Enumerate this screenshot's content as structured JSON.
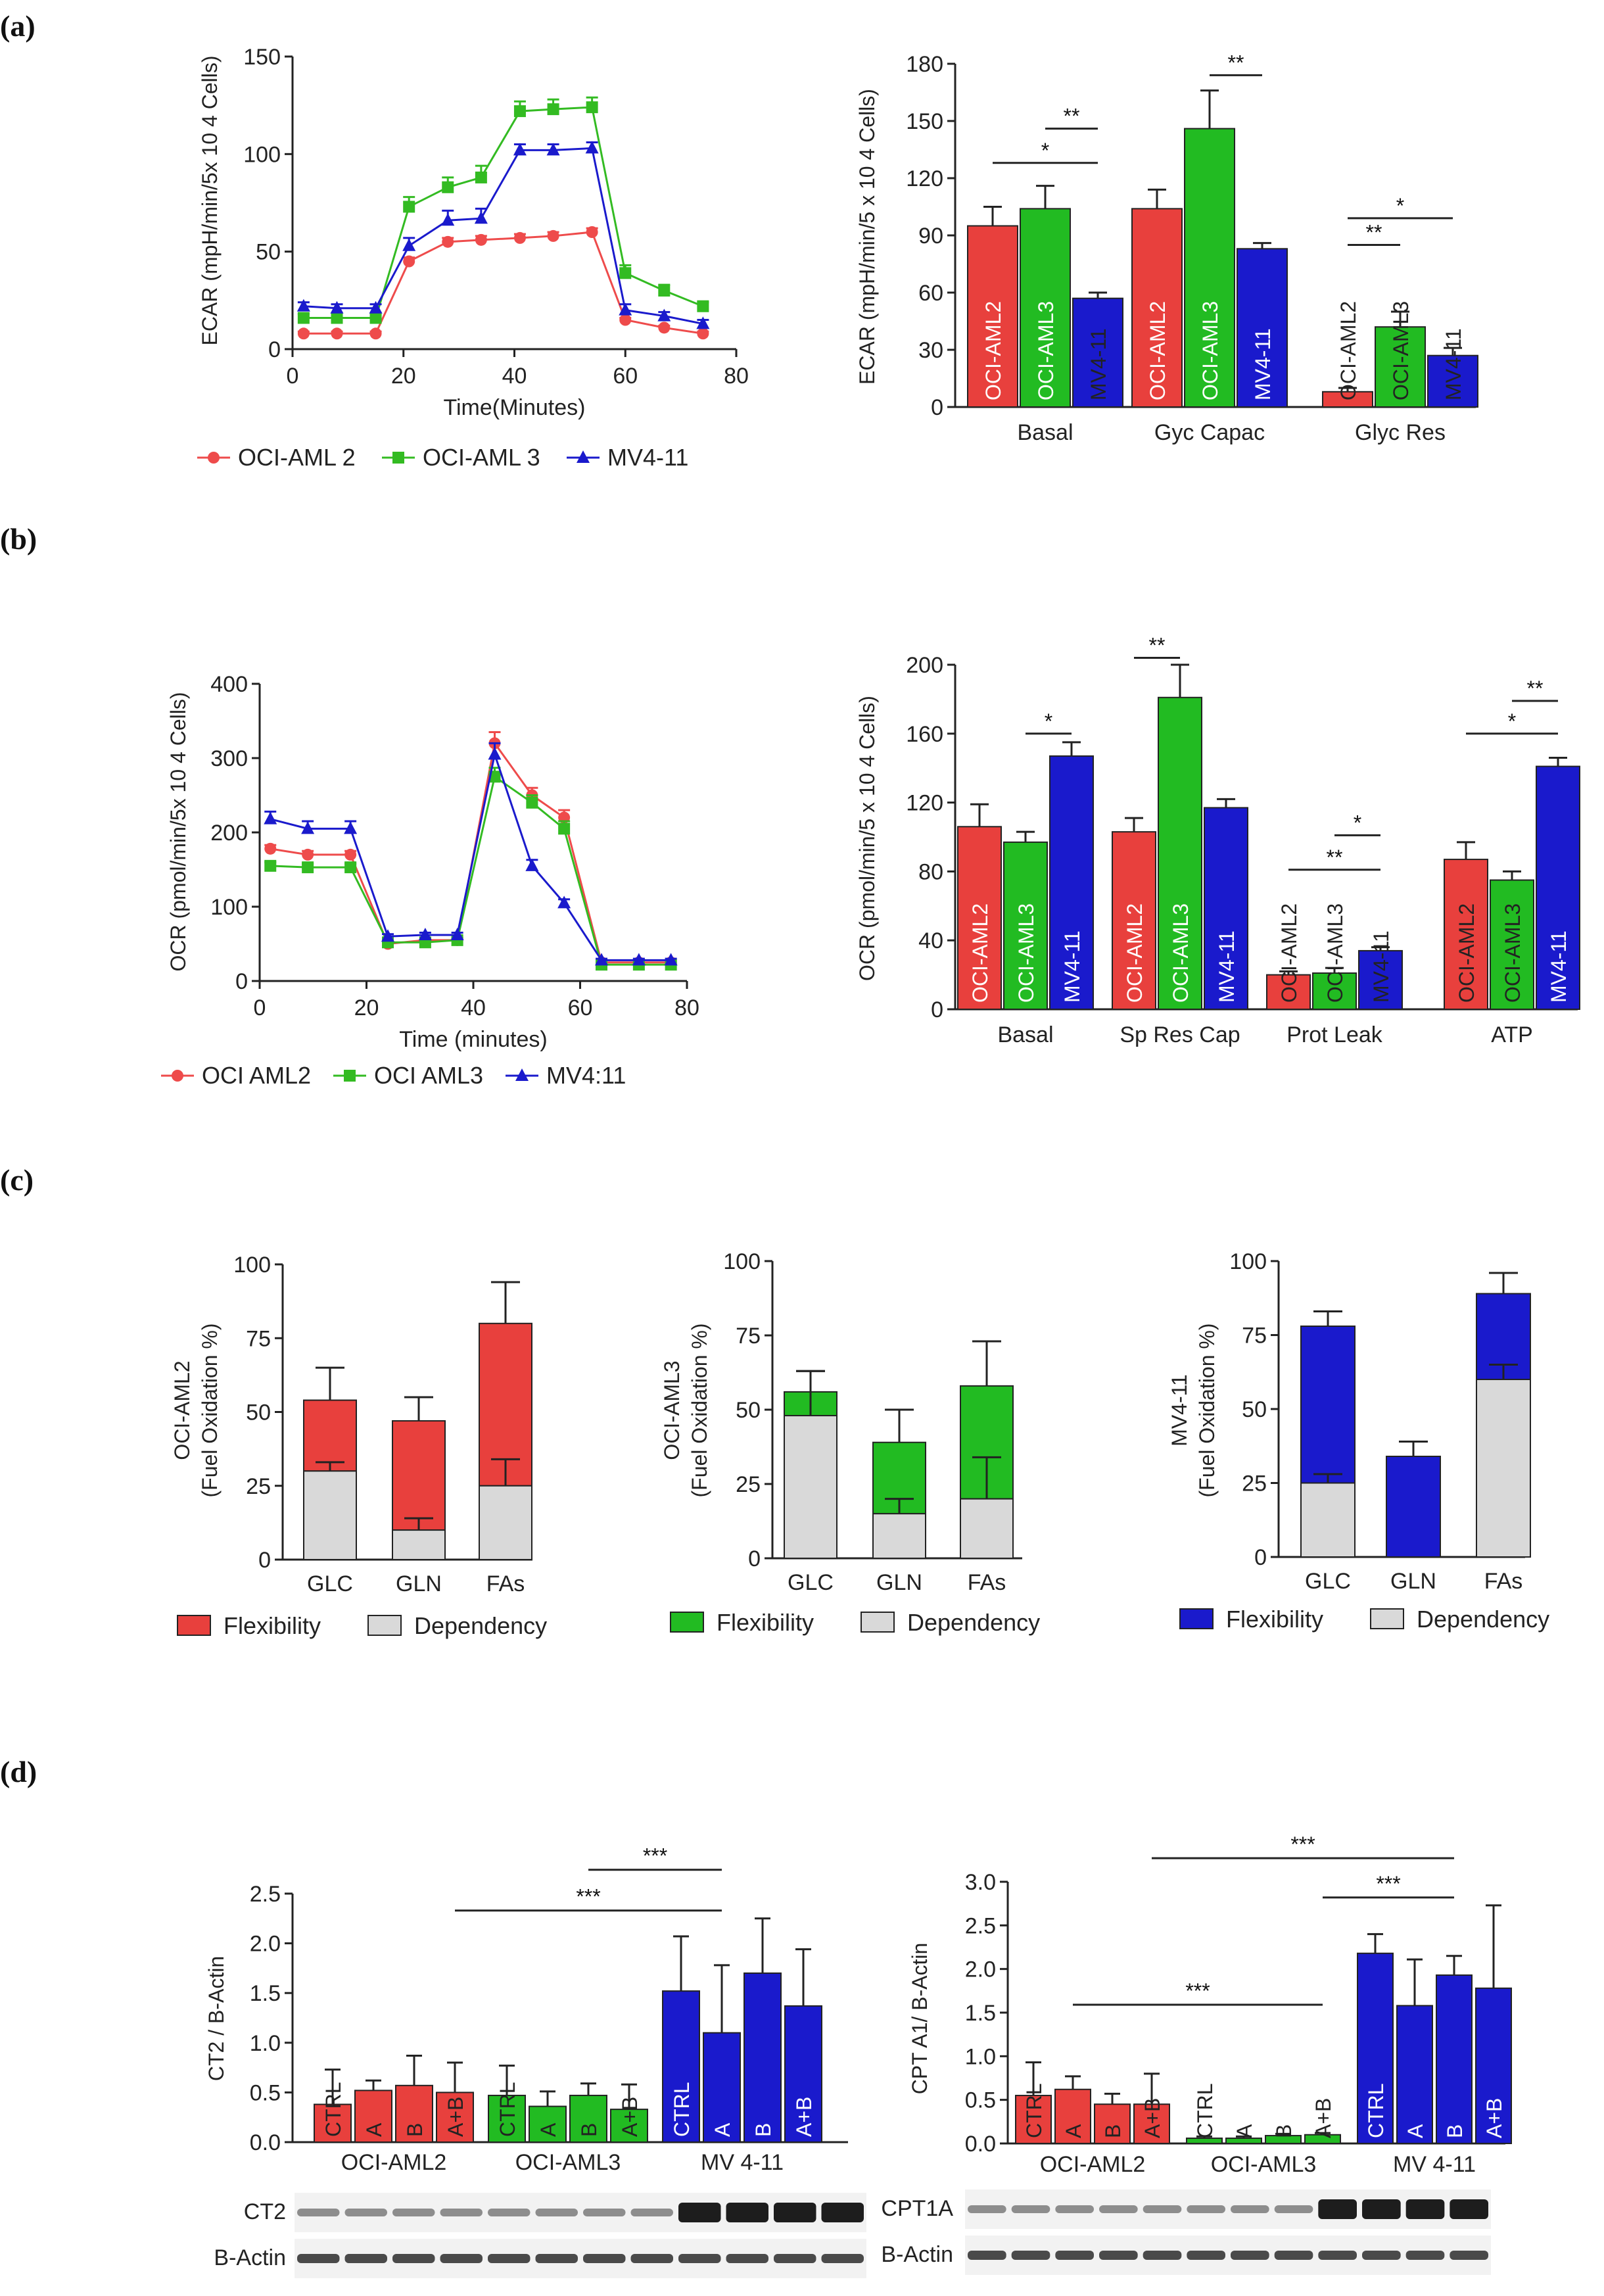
{
  "panels": {
    "a": "(a)",
    "b": "(b)",
    "c": "(c)",
    "d": "(d)"
  },
  "colors": {
    "aml2": "#e8403d",
    "aml3": "#22bb22",
    "mv4": "#1a1acc",
    "grey": "#d9d9d9",
    "line_aml2": "#ee4b4b",
    "line_aml3": "#33bb22",
    "line_mv4": "#1a1acc"
  },
  "chart_data": [
    {
      "id": "a_line",
      "type": "line",
      "ylabel": "ECAR (mpH/min/5x 10 4 Cells)",
      "xlabel": "Time(Minutes)",
      "xlim": [
        0,
        80
      ],
      "ylim": [
        0,
        150
      ],
      "xticks": [
        "0",
        "20",
        "40",
        "60",
        "80"
      ],
      "yticks": [
        "0",
        "50",
        "100",
        "150"
      ],
      "x": [
        2,
        8,
        15,
        21,
        28,
        34,
        41,
        47,
        54,
        60,
        67,
        74
      ],
      "series": [
        {
          "name": "OCI-AML 2",
          "color": "#ee4b4b",
          "marker": "circle",
          "values": [
            8,
            8,
            8,
            45,
            55,
            56,
            57,
            58,
            60,
            15,
            11,
            8
          ],
          "err": [
            1,
            1,
            1,
            2,
            2,
            2,
            2,
            2,
            2,
            1,
            1,
            1
          ]
        },
        {
          "name": "OCI-AML 3",
          "color": "#33bb22",
          "marker": "square",
          "values": [
            16,
            16,
            16,
            73,
            83,
            88,
            122,
            123,
            124,
            39,
            30,
            22
          ],
          "err": [
            2,
            2,
            2,
            5,
            5,
            6,
            5,
            5,
            5,
            4,
            3,
            2
          ]
        },
        {
          "name": "MV4-11",
          "color": "#1a1acc",
          "marker": "triangle",
          "values": [
            22,
            21,
            21,
            53,
            66,
            67,
            102,
            102,
            103,
            20,
            17,
            13
          ],
          "err": [
            2,
            2,
            2,
            4,
            5,
            5,
            3,
            3,
            3,
            3,
            2,
            2
          ]
        }
      ],
      "legend": [
        "OCI-AML 2",
        "OCI-AML 3",
        "MV4-11"
      ]
    },
    {
      "id": "a_bar",
      "type": "bar",
      "ylabel": "ECAR (mpH/min/5 x 10 4 Cells)",
      "ylim": [
        0,
        180
      ],
      "yticks": [
        "0",
        "30",
        "60",
        "90",
        "120",
        "150",
        "180"
      ],
      "categories": [
        "Basal",
        "Gyc Capac",
        "Glyc Res"
      ],
      "series": [
        {
          "name": "OCI-AML2",
          "values": [
            95,
            104,
            8
          ],
          "err": [
            10,
            10,
            2
          ]
        },
        {
          "name": "OCI-AML3",
          "values": [
            104,
            146,
            42
          ],
          "err": [
            12,
            20,
            8
          ]
        },
        {
          "name": "MV4-11",
          "values": [
            57,
            83,
            27
          ],
          "err": [
            3,
            3,
            4
          ]
        }
      ],
      "significance": [
        {
          "label": "*",
          "group": 0,
          "from": 0,
          "to": 2,
          "y": 128
        },
        {
          "label": "**",
          "group": 0,
          "from": 1,
          "to": 2,
          "y": 146
        },
        {
          "label": "**",
          "group": 1,
          "from": 1,
          "to": 2,
          "y": 174
        },
        {
          "label": "**",
          "group": 2,
          "from": 0,
          "to": 1,
          "y": 85
        },
        {
          "label": "*",
          "group": 2,
          "from": 0,
          "to": 2,
          "y": 99
        }
      ]
    },
    {
      "id": "b_line",
      "type": "line",
      "ylabel": "OCR (pmol/min/5x 10 4 Cells)",
      "xlabel": "Time (minutes)",
      "xlim": [
        0,
        80
      ],
      "ylim": [
        0,
        400
      ],
      "xticks": [
        "0",
        "20",
        "40",
        "60",
        "80"
      ],
      "yticks": [
        "0",
        "100",
        "200",
        "300",
        "400"
      ],
      "x": [
        2,
        9,
        17,
        24,
        31,
        37,
        44,
        51,
        57,
        64,
        71,
        77
      ],
      "series": [
        {
          "name": "OCI AML2",
          "color": "#ee4b4b",
          "marker": "circle",
          "values": [
            178,
            170,
            170,
            50,
            55,
            55,
            320,
            250,
            220,
            25,
            25,
            25
          ],
          "err": [
            5,
            5,
            5,
            3,
            3,
            3,
            15,
            10,
            10,
            2,
            2,
            2
          ]
        },
        {
          "name": "OCI AML3",
          "color": "#33bb22",
          "marker": "square",
          "values": [
            155,
            153,
            153,
            52,
            52,
            55,
            275,
            240,
            205,
            22,
            22,
            22
          ],
          "err": [
            5,
            5,
            5,
            3,
            3,
            3,
            12,
            10,
            10,
            2,
            2,
            2
          ]
        },
        {
          "name": "MV4:11",
          "color": "#1a1acc",
          "marker": "triangle",
          "values": [
            218,
            205,
            205,
            60,
            62,
            62,
            305,
            155,
            105,
            28,
            28,
            28
          ],
          "err": [
            10,
            10,
            10,
            3,
            3,
            3,
            15,
            8,
            5,
            2,
            2,
            2
          ]
        }
      ],
      "legend": [
        "OCI AML2",
        "OCI AML3",
        "MV4:11"
      ]
    },
    {
      "id": "b_bar",
      "type": "bar",
      "ylabel": "OCR (pmol/min/5 x 10 4 Cells)",
      "ylim": [
        0,
        200
      ],
      "yticks": [
        "0",
        "40",
        "80",
        "120",
        "160",
        "200"
      ],
      "categories": [
        "Basal",
        "Sp Res Cap",
        "Prot Leak",
        "ATP"
      ],
      "series": [
        {
          "name": "OCI-AML2",
          "values": [
            106,
            103,
            20,
            87
          ],
          "err": [
            13,
            8,
            2,
            10
          ]
        },
        {
          "name": "OCI-AML3",
          "values": [
            97,
            181,
            21,
            75
          ],
          "err": [
            6,
            19,
            3,
            5
          ]
        },
        {
          "name": "MV4-11",
          "values": [
            147,
            117,
            34,
            141
          ],
          "err": [
            8,
            5,
            2,
            5
          ]
        }
      ],
      "significance": [
        {
          "label": "*",
          "group": 0,
          "from": 1,
          "to": 2,
          "y": 160
        },
        {
          "label": "**",
          "group": 1,
          "from": 0,
          "to": 1,
          "y": 204
        },
        {
          "label": "**",
          "group": 2,
          "from": 0,
          "to": 2,
          "y": 81
        },
        {
          "label": "*",
          "group": 2,
          "from": 1,
          "to": 2,
          "y": 101
        },
        {
          "label": "*",
          "group": 3,
          "from": 0,
          "to": 2,
          "y": 160
        },
        {
          "label": "**",
          "group": 3,
          "from": 1,
          "to": 2,
          "y": 179
        }
      ]
    },
    {
      "id": "c_aml2",
      "type": "bar",
      "stacked": true,
      "ylabel": "OCI-AML2",
      "ylabel2": "(Fuel Oxidation %)",
      "ylim": [
        0,
        100
      ],
      "yticks": [
        "0",
        "25",
        "50",
        "75",
        "100"
      ],
      "categories": [
        "GLC",
        "GLN",
        "FAs"
      ],
      "series": [
        {
          "name": "Dependency",
          "values": [
            30,
            10,
            25
          ],
          "err": [
            3,
            4,
            9
          ]
        },
        {
          "name": "Flexibility",
          "values": [
            24,
            37,
            55
          ],
          "err": [
            11,
            8,
            14
          ]
        }
      ],
      "legend": [
        "Flexibility",
        "Dependency"
      ]
    },
    {
      "id": "c_aml3",
      "type": "bar",
      "stacked": true,
      "ylabel": "OCI-AML3",
      "ylabel2": "(Fuel Oxidation %)",
      "ylim": [
        0,
        100
      ],
      "yticks": [
        "0",
        "25",
        "50",
        "75",
        "100"
      ],
      "categories": [
        "GLC",
        "GLN",
        "FAs"
      ],
      "series": [
        {
          "name": "Dependency",
          "values": [
            48,
            15,
            20
          ],
          "err": [
            15,
            5,
            14
          ]
        },
        {
          "name": "Flexibility",
          "values": [
            8,
            24,
            38
          ],
          "err": [
            7,
            11,
            15
          ]
        }
      ],
      "legend": [
        "Flexibility",
        "Dependency"
      ]
    },
    {
      "id": "c_mv4",
      "type": "bar",
      "stacked": true,
      "ylabel": "MV4-11",
      "ylabel2": "(Fuel Oxidation %)",
      "ylim": [
        0,
        100
      ],
      "yticks": [
        "0",
        "25",
        "50",
        "75",
        "100"
      ],
      "categories": [
        "GLC",
        "GLN",
        "FAs"
      ],
      "series": [
        {
          "name": "Dependency",
          "values": [
            25,
            0,
            60
          ],
          "err": [
            3,
            0,
            5
          ]
        },
        {
          "name": "Flexibility",
          "values": [
            53,
            34,
            29
          ],
          "err": [
            5,
            5,
            7
          ]
        }
      ],
      "legend": [
        "Flexibility",
        "Dependency"
      ]
    },
    {
      "id": "d_ct2",
      "type": "bar",
      "ylabel": "CT2 / B-Actin",
      "ylim": [
        0,
        2.5
      ],
      "yticks": [
        "0.0",
        "0.5",
        "1.0",
        "1.5",
        "2.0",
        "2.5"
      ],
      "groups": [
        "OCI-AML2",
        "OCI-AML3",
        "MV 4-11"
      ],
      "bar_labels": [
        "CTRL",
        "A",
        "B",
        "A+B"
      ],
      "values": [
        [
          0.38,
          0.52,
          0.57,
          0.5
        ],
        [
          0.47,
          0.36,
          0.47,
          0.33
        ],
        [
          1.52,
          1.1,
          1.7,
          1.37
        ]
      ],
      "err": [
        [
          0.35,
          0.1,
          0.3,
          0.3
        ],
        [
          0.3,
          0.15,
          0.12,
          0.25
        ],
        [
          0.55,
          0.68,
          0.55,
          0.57
        ]
      ],
      "significance": [
        {
          "label": "***",
          "y": 2.33
        },
        {
          "label": "***",
          "y": 2.74
        }
      ],
      "blot": [
        "CT2",
        "B-Actin"
      ]
    },
    {
      "id": "d_cpt1a",
      "type": "bar",
      "ylabel": "CPT A1/ B-Actin",
      "ylim": [
        0,
        3.0
      ],
      "yticks": [
        "0.0",
        "0.5",
        "1.0",
        "1.5",
        "2.0",
        "2.5",
        "3.0"
      ],
      "groups": [
        "OCI-AML2",
        "OCI-AML3",
        "MV 4-11"
      ],
      "bar_labels": [
        "CTRL",
        "A",
        "B",
        "A+B"
      ],
      "values": [
        [
          0.55,
          0.62,
          0.45,
          0.45
        ],
        [
          0.06,
          0.06,
          0.09,
          0.1
        ],
        [
          2.18,
          1.58,
          1.93,
          1.78
        ]
      ],
      "err": [
        [
          0.38,
          0.15,
          0.12,
          0.35
        ],
        [
          0.02,
          0.02,
          0.02,
          0.02
        ],
        [
          0.22,
          0.53,
          0.22,
          0.95
        ]
      ],
      "significance": [
        {
          "label": "***",
          "y": 3.27
        },
        {
          "label": "***",
          "y": 2.82
        },
        {
          "label": "***",
          "y": 1.59
        }
      ],
      "blot": [
        "CPT1A",
        "B-Actin"
      ]
    }
  ]
}
